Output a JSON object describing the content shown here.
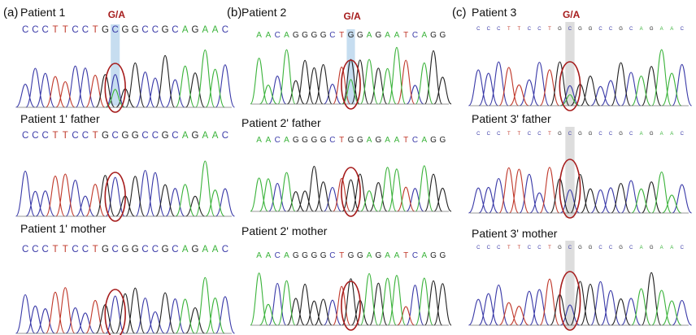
{
  "colors": {
    "A": "#3bb33b",
    "C": "#3a3aa8",
    "G": "#222222",
    "T": "#c0392b",
    "highlight_blue": "#b8d4ec",
    "highlight_gray": "#d4d4d4",
    "circle": "#a61c1c",
    "variant_label": "#a61c1c",
    "title": "#111111",
    "baseline": "#777777"
  },
  "variant_label": "G/A",
  "panels": [
    {
      "letter": "(a)",
      "highlight": "blue",
      "tracks": [
        {
          "title": "Patient 1",
          "sequence": "CCCTTCCTGCGGCCGCAGAAC",
          "variant": true
        },
        {
          "title": "Patient 1' father",
          "sequence": "CCCTTCCTGCGGCCGCAGAAC",
          "variant": false
        },
        {
          "title": "Patient 1' mother",
          "sequence": "CCCTTCCTGCGGCCGCAGAAC",
          "variant": false
        }
      ]
    },
    {
      "letter": "(b)",
      "highlight": "blue",
      "tracks": [
        {
          "title": "Patient 2",
          "sequence": "AACAGGGGCTGGAGAATCAGG",
          "variant": true
        },
        {
          "title": "Patient 2' father",
          "sequence": "AACAGGGGCTGGAGAATCAGG",
          "variant": false
        },
        {
          "title": "Patient 2' mother",
          "sequence": "AACAGGGGCTGGAGAATCAGG",
          "variant": false
        }
      ]
    },
    {
      "letter": "(c)",
      "highlight": "gray",
      "tracks": [
        {
          "title": "Patient 3",
          "sequence": "CCCTTCCTGCGGCCGCAGAAC",
          "variant": true
        },
        {
          "title": "Patient 3' father",
          "sequence": "CCCTTCCTGCGGCCGCAGAAC",
          "variant": false
        },
        {
          "title": "Patient 3' mother",
          "sequence": "CCCTTCCTGCGGCCGCAGAAC",
          "variant": false
        }
      ]
    }
  ]
}
